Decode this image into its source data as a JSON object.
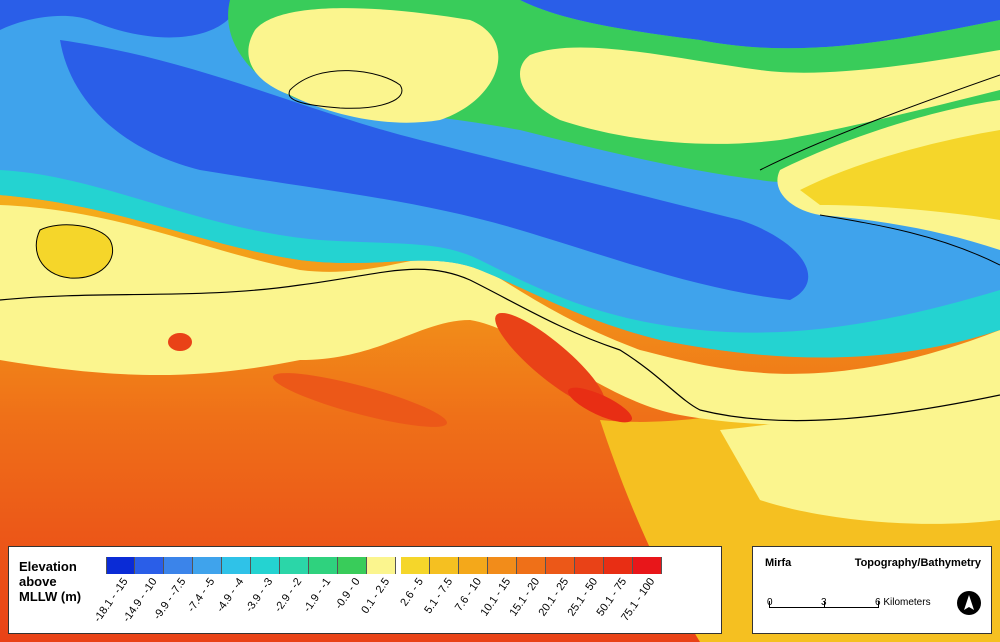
{
  "legend": {
    "title": "Elevation\nabove\nMLLW (m)",
    "classes": [
      {
        "label": "-18.1 - -15",
        "color": "#0a2bd6"
      },
      {
        "label": "-14.9 - -10",
        "color": "#2a5ee8"
      },
      {
        "label": "-9.9 - -7.5",
        "color": "#3b84ea"
      },
      {
        "label": "-7.4 - -5",
        "color": "#3fa3ec"
      },
      {
        "label": "-4.9 - -4",
        "color": "#2fc2e8"
      },
      {
        "label": "-3.9 - -3",
        "color": "#24d3d1"
      },
      {
        "label": "-2.9 - -2",
        "color": "#2bd6a8"
      },
      {
        "label": "-1.9 - -1",
        "color": "#2fd27e"
      },
      {
        "label": "-0.9 - 0",
        "color": "#39cc5a"
      },
      {
        "label": "0.1 - 2.5",
        "color": "#fbf58e"
      },
      {
        "label": "2.6 - 5",
        "color": "#f5d62a"
      },
      {
        "label": "5.1 - 7.5",
        "color": "#f5c021"
      },
      {
        "label": "7.6 - 10",
        "color": "#f4a81a"
      },
      {
        "label": "10.1 - 15",
        "color": "#f28c1a"
      },
      {
        "label": "15.1 - 20",
        "color": "#ef7018"
      },
      {
        "label": "20.1 - 25",
        "color": "#ec5818"
      },
      {
        "label": "25.1 - 50",
        "color": "#e94217"
      },
      {
        "label": "50.1 - 75",
        "color": "#e82e14"
      },
      {
        "label": "75.1 - 100",
        "color": "#e8161a"
      }
    ]
  },
  "info": {
    "place": "Mirfa",
    "map_type": "Topography/Bathymetry",
    "scale_labels": [
      "0",
      "3",
      "6 Kilometers"
    ]
  },
  "colors": {
    "deep": "#2a5ee8",
    "mid_water": "#3fa3ec",
    "shallow": "#2fd27e",
    "coast": "#fbf58e",
    "land_low": "#f5c021",
    "land_mid": "#f28c1a",
    "land_high": "#e94217"
  }
}
